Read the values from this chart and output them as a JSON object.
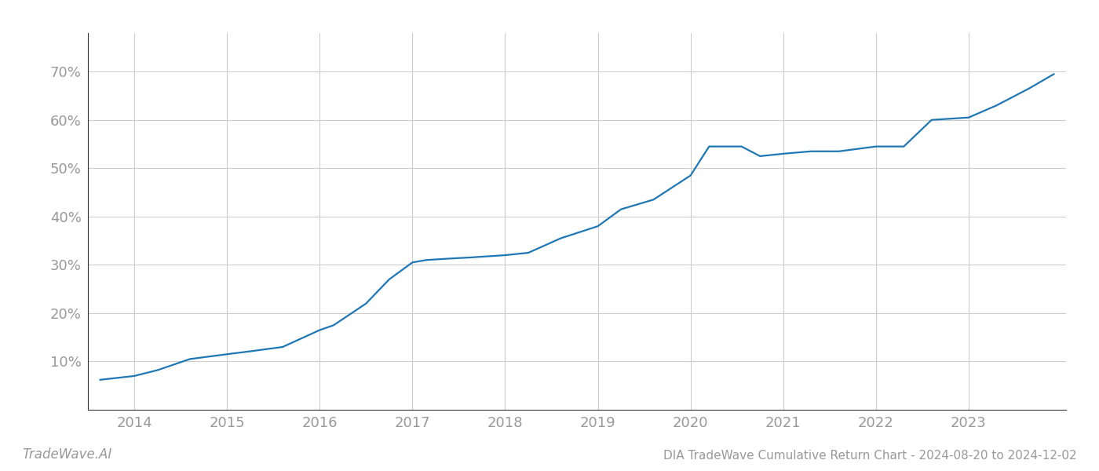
{
  "title": "DIA TradeWave Cumulative Return Chart - 2024-08-20 to 2024-12-02",
  "watermark": "TradeWave.AI",
  "line_color": "#1f77b4",
  "background_color": "#ffffff",
  "grid_color": "#cccccc",
  "x_years": [
    2013.63,
    2014.0,
    2014.25,
    2014.6,
    2015.0,
    2015.25,
    2015.6,
    2016.0,
    2016.15,
    2016.5,
    2016.75,
    2017.0,
    2017.15,
    2017.4,
    2017.6,
    2018.0,
    2018.25,
    2018.6,
    2019.0,
    2019.25,
    2019.6,
    2020.0,
    2020.2,
    2020.55,
    2020.75,
    2021.0,
    2021.3,
    2021.6,
    2022.0,
    2022.3,
    2022.6,
    2023.0,
    2023.3,
    2023.65,
    2023.92
  ],
  "y_values": [
    0.062,
    0.07,
    0.082,
    0.105,
    0.115,
    0.121,
    0.13,
    0.165,
    0.175,
    0.22,
    0.27,
    0.305,
    0.31,
    0.313,
    0.315,
    0.32,
    0.325,
    0.355,
    0.38,
    0.415,
    0.435,
    0.485,
    0.545,
    0.545,
    0.525,
    0.53,
    0.535,
    0.535,
    0.545,
    0.545,
    0.6,
    0.605,
    0.63,
    0.665,
    0.695
  ],
  "xlim": [
    2013.5,
    2024.05
  ],
  "ylim": [
    0.0,
    0.78
  ],
  "yticks": [
    0.1,
    0.2,
    0.3,
    0.4,
    0.5,
    0.6,
    0.7
  ],
  "xticks": [
    2014,
    2015,
    2016,
    2017,
    2018,
    2019,
    2020,
    2021,
    2022,
    2023
  ],
  "tick_color": "#999999",
  "spine_color": "#333333",
  "line_width": 1.6,
  "title_fontsize": 11,
  "watermark_fontsize": 12,
  "axis_tick_fontsize": 13
}
